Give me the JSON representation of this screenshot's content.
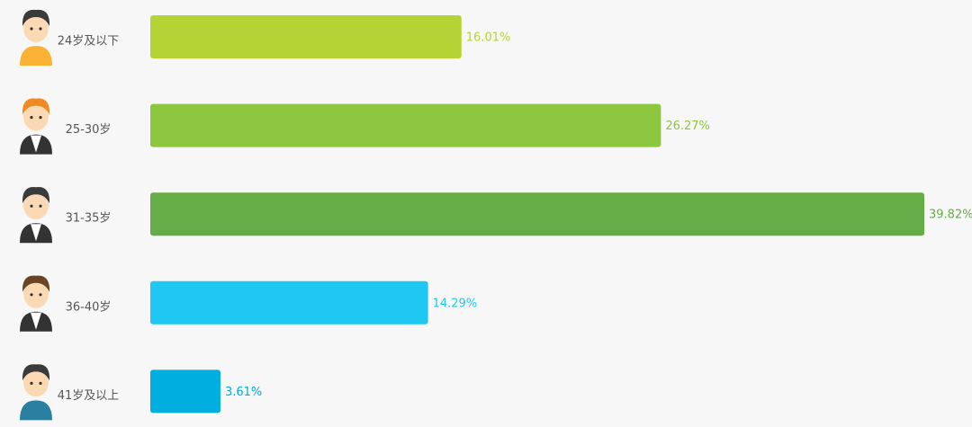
{
  "chart_data": {
    "type": "bar",
    "orientation": "horizontal",
    "categories": [
      "24岁及以下",
      "25-30岁",
      "31-35岁",
      "36-40岁",
      "41岁及以上"
    ],
    "values": [
      16.01,
      26.27,
      39.82,
      14.29,
      3.61
    ],
    "value_labels": [
      "16.01%",
      "26.27%",
      "39.82%",
      "14.29%",
      "3.61%"
    ],
    "colors": [
      "#b5d334",
      "#8dc63f",
      "#66ad47",
      "#1fc8f2",
      "#00aee0"
    ]
  }
}
